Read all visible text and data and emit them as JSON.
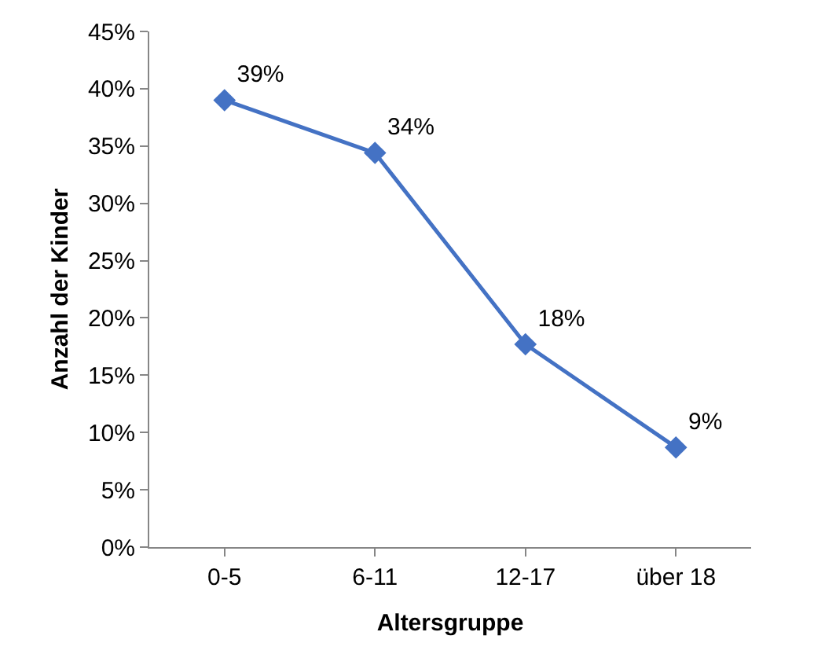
{
  "chart_data": {
    "type": "line",
    "xlabel": "Altersgruppe",
    "ylabel": "Anzahl der Kinder",
    "categories": [
      "0-5",
      "6-11",
      "12-17",
      "über 18"
    ],
    "series": [
      {
        "color": "#4472c4",
        "values": [
          39,
          34.4,
          17.7,
          8.7
        ],
        "value_labels": [
          "39%",
          "34%",
          "18%",
          "9%"
        ]
      }
    ],
    "ylim": [
      0,
      45
    ],
    "yticks": [
      {
        "value": 0,
        "label": "0%"
      },
      {
        "value": 5,
        "label": "5%"
      },
      {
        "value": 10,
        "label": "10%"
      },
      {
        "value": 15,
        "label": "15%"
      },
      {
        "value": 20,
        "label": "20%"
      },
      {
        "value": 25,
        "label": "25%"
      },
      {
        "value": 30,
        "label": "30%"
      },
      {
        "value": 35,
        "label": "35%"
      },
      {
        "value": 40,
        "label": "40%"
      },
      {
        "value": 45,
        "label": "45%"
      }
    ],
    "marker": "diamond",
    "line_style": "solid"
  }
}
